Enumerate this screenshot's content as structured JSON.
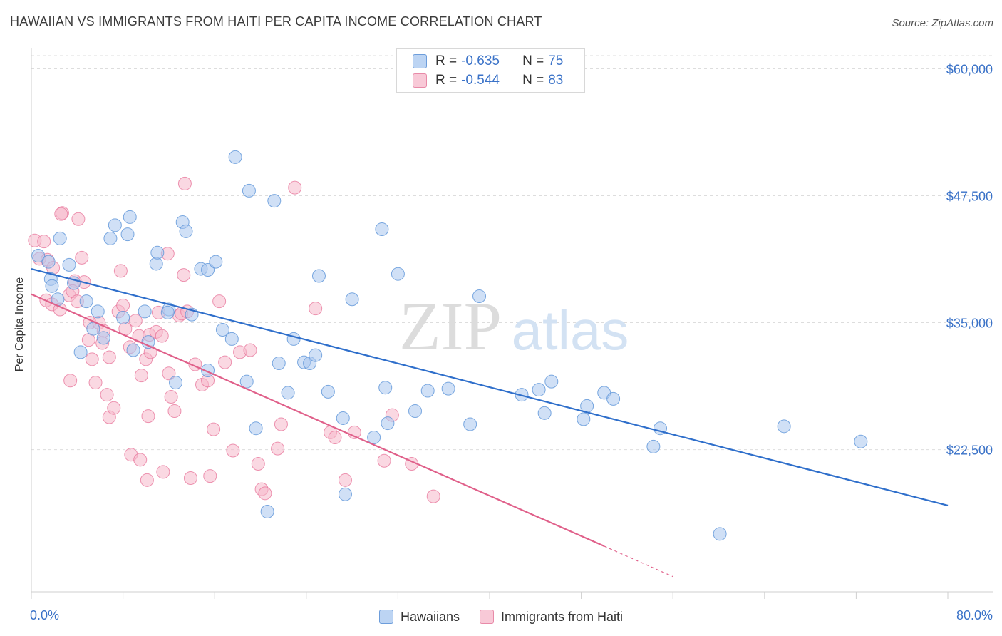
{
  "title": "HAWAIIAN VS IMMIGRANTS FROM HAITI PER CAPITA INCOME CORRELATION CHART",
  "source": "Source: ZipAtlas.com",
  "watermark": {
    "zip": "ZIP",
    "atlas": "atlas"
  },
  "correlation": [
    {
      "r_label": "R =",
      "r_value": "-0.635",
      "n_label": "N =",
      "n_value": "75",
      "color": "#a9c7ef"
    },
    {
      "r_label": "R =",
      "r_value": "-0.544",
      "n_label": "N =",
      "n_value": "83",
      "color": "#f5b8cb"
    }
  ],
  "legend": [
    {
      "name": "Hawaiians",
      "color": "#a9c7ef"
    },
    {
      "name": "Immigrants from Haiti",
      "color": "#f5b8cb"
    }
  ],
  "chart_data": {
    "type": "scatter",
    "title": "HAWAIIAN VS IMMIGRANTS FROM HAITI PER CAPITA INCOME CORRELATION CHART",
    "xlabel": "",
    "ylabel": "Per Capita Income",
    "xlim": [
      0,
      80
    ],
    "ylim": [
      8500,
      62000
    ],
    "x_tick_labels": [
      "0.0%",
      "80.0%"
    ],
    "y_ticks": [
      22500,
      35000,
      47500,
      60000
    ],
    "y_tick_labels": [
      "$22,500",
      "$35,000",
      "$47,500",
      "$60,000"
    ],
    "grid": true,
    "legend_position": "bottom",
    "series": [
      {
        "name": "Hawaiians",
        "color": "#5b93d8",
        "fill": "#a9c7ef",
        "trend": {
          "x": [
            0,
            80
          ],
          "y": [
            40300,
            17000
          ]
        },
        "points": [
          [
            0.6,
            41600
          ],
          [
            1.5,
            41000
          ],
          [
            1.7,
            39300
          ],
          [
            2.5,
            43300
          ],
          [
            3.3,
            40700
          ],
          [
            1.8,
            38600
          ],
          [
            2.3,
            37300
          ],
          [
            3.7,
            38900
          ],
          [
            4.8,
            37100
          ],
          [
            5.8,
            36100
          ],
          [
            5.4,
            34400
          ],
          [
            6.3,
            33500
          ],
          [
            4.3,
            32100
          ],
          [
            6.9,
            43300
          ],
          [
            7.3,
            44600
          ],
          [
            8.4,
            43700
          ],
          [
            8.6,
            45400
          ],
          [
            8.0,
            35500
          ],
          [
            8.9,
            32300
          ],
          [
            10.2,
            33100
          ],
          [
            9.9,
            36100
          ],
          [
            10.9,
            40800
          ],
          [
            11.0,
            41900
          ],
          [
            12.0,
            36300
          ],
          [
            11.9,
            36000
          ],
          [
            13.2,
            44900
          ],
          [
            13.5,
            44000
          ],
          [
            14.0,
            35800
          ],
          [
            14.8,
            40300
          ],
          [
            15.4,
            40200
          ],
          [
            16.1,
            41000
          ],
          [
            12.6,
            29100
          ],
          [
            15.4,
            30300
          ],
          [
            16.7,
            34300
          ],
          [
            17.5,
            33400
          ],
          [
            17.8,
            51300
          ],
          [
            18.8,
            29200
          ],
          [
            19.0,
            48000
          ],
          [
            19.6,
            24600
          ],
          [
            20.6,
            16400
          ],
          [
            21.2,
            47000
          ],
          [
            21.6,
            31000
          ],
          [
            22.4,
            28100
          ],
          [
            22.9,
            33400
          ],
          [
            23.8,
            31100
          ],
          [
            24.3,
            31000
          ],
          [
            24.8,
            31800
          ],
          [
            25.1,
            39600
          ],
          [
            25.9,
            28200
          ],
          [
            27.2,
            25600
          ],
          [
            27.4,
            18100
          ],
          [
            28.0,
            37300
          ],
          [
            29.9,
            23700
          ],
          [
            30.6,
            44200
          ],
          [
            30.9,
            28600
          ],
          [
            31.1,
            25100
          ],
          [
            32.0,
            39800
          ],
          [
            33.5,
            26300
          ],
          [
            34.6,
            28300
          ],
          [
            36.4,
            28500
          ],
          [
            38.3,
            25000
          ],
          [
            39.1,
            37600
          ],
          [
            42.8,
            27900
          ],
          [
            44.3,
            28400
          ],
          [
            44.8,
            26100
          ],
          [
            45.4,
            29200
          ],
          [
            48.2,
            25500
          ],
          [
            48.5,
            26800
          ],
          [
            50.0,
            28100
          ],
          [
            50.8,
            27500
          ],
          [
            54.3,
            22800
          ],
          [
            54.9,
            24600
          ],
          [
            60.1,
            14200
          ],
          [
            65.7,
            24800
          ],
          [
            72.4,
            23300
          ]
        ]
      },
      {
        "name": "Immigrants from Haiti",
        "color": "#e8799d",
        "fill": "#f5b8cb",
        "trend": {
          "x": [
            0,
            50
          ],
          "y": [
            37800,
            13000
          ]
        },
        "trend_dashed": {
          "x": [
            50,
            56
          ],
          "y": [
            13000,
            10000
          ]
        },
        "points": [
          [
            0.3,
            43100
          ],
          [
            1.1,
            43000
          ],
          [
            0.7,
            41300
          ],
          [
            1.4,
            41200
          ],
          [
            1.9,
            40400
          ],
          [
            1.3,
            37200
          ],
          [
            1.8,
            36800
          ],
          [
            2.5,
            36300
          ],
          [
            3.3,
            37700
          ],
          [
            2.7,
            45800
          ],
          [
            2.6,
            45700
          ],
          [
            4.1,
            45200
          ],
          [
            4.4,
            41400
          ],
          [
            3.8,
            39100
          ],
          [
            4.6,
            39000
          ],
          [
            3.6,
            38100
          ],
          [
            4.0,
            37100
          ],
          [
            5.1,
            35000
          ],
          [
            5.9,
            35000
          ],
          [
            6.3,
            34200
          ],
          [
            5.0,
            33300
          ],
          [
            6.2,
            33000
          ],
          [
            5.3,
            31400
          ],
          [
            6.8,
            31600
          ],
          [
            5.6,
            29100
          ],
          [
            6.6,
            27900
          ],
          [
            3.4,
            29300
          ],
          [
            6.8,
            25700
          ],
          [
            7.2,
            26600
          ],
          [
            7.8,
            40100
          ],
          [
            7.6,
            36100
          ],
          [
            8.0,
            36700
          ],
          [
            8.2,
            34400
          ],
          [
            8.6,
            32600
          ],
          [
            9.1,
            35200
          ],
          [
            9.4,
            33700
          ],
          [
            9.6,
            29800
          ],
          [
            10.0,
            31400
          ],
          [
            10.3,
            33800
          ],
          [
            10.4,
            32100
          ],
          [
            10.9,
            34100
          ],
          [
            11.1,
            36000
          ],
          [
            11.4,
            33700
          ],
          [
            11.9,
            41800
          ],
          [
            12.0,
            30000
          ],
          [
            12.2,
            27700
          ],
          [
            12.5,
            26300
          ],
          [
            12.9,
            35700
          ],
          [
            13.1,
            35900
          ],
          [
            13.3,
            39700
          ],
          [
            13.6,
            36100
          ],
          [
            14.3,
            30900
          ],
          [
            14.9,
            28900
          ],
          [
            15.4,
            29300
          ],
          [
            15.9,
            24500
          ],
          [
            16.4,
            37100
          ],
          [
            16.9,
            31100
          ],
          [
            17.6,
            22400
          ],
          [
            18.2,
            32100
          ],
          [
            19.1,
            32300
          ],
          [
            19.8,
            21100
          ],
          [
            20.1,
            18600
          ],
          [
            20.4,
            18200
          ],
          [
            21.5,
            22600
          ],
          [
            21.8,
            25000
          ],
          [
            23.0,
            48300
          ],
          [
            24.8,
            36400
          ],
          [
            26.1,
            24200
          ],
          [
            26.5,
            23700
          ],
          [
            27.4,
            19500
          ],
          [
            28.2,
            24200
          ],
          [
            30.8,
            21400
          ],
          [
            31.5,
            25900
          ],
          [
            33.2,
            21100
          ],
          [
            35.1,
            17900
          ],
          [
            11.5,
            20300
          ],
          [
            10.1,
            19500
          ],
          [
            13.9,
            19700
          ],
          [
            15.6,
            19900
          ],
          [
            13.4,
            48700
          ],
          [
            8.7,
            22000
          ],
          [
            9.5,
            21500
          ],
          [
            10.2,
            25800
          ]
        ]
      }
    ]
  }
}
